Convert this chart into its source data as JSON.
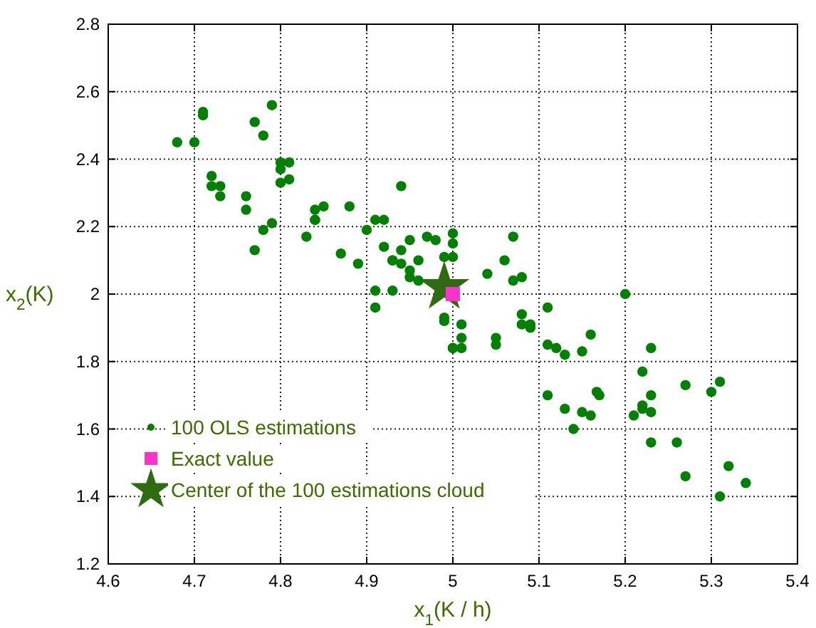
{
  "chart_data": {
    "type": "scatter",
    "xlabel": "x$_{1}$(K / h)",
    "ylabel": "x$_{2}$(K)",
    "xlim": [
      4.6,
      5.4
    ],
    "ylim": [
      1.2,
      2.8
    ],
    "xticks": [
      4.6,
      4.7,
      4.8,
      4.9,
      5,
      5.1,
      5.2,
      5.3,
      5.4
    ],
    "yticks": [
      1.2,
      1.4,
      1.6,
      1.8,
      2,
      2.2,
      2.4,
      2.6,
      2.8
    ],
    "grid": true,
    "legend": "bottom left",
    "series": [
      {
        "name": "100 OLS estimations",
        "color": "#008000",
        "marker": "circle",
        "x": [
          4.68,
          4.7,
          4.71,
          4.71,
          4.79,
          4.77,
          4.78,
          4.8,
          4.8,
          4.81,
          4.8,
          4.81,
          4.72,
          4.72,
          4.73,
          4.73,
          4.76,
          4.76,
          4.79,
          4.78,
          4.77,
          4.83,
          4.84,
          4.84,
          4.84,
          4.85,
          4.88,
          4.94,
          4.9,
          4.91,
          4.92,
          4.87,
          4.89,
          4.92,
          4.95,
          4.94,
          4.93,
          4.93,
          4.94,
          4.96,
          4.97,
          4.98,
          4.95,
          4.95,
          4.96,
          4.99,
          5.0,
          5.0,
          4.91,
          4.93,
          4.91,
          4.99,
          4.99,
          5.0,
          5.07,
          5.06,
          5.04,
          5.07,
          5.08,
          5.01,
          5.01,
          5.01,
          5.0,
          5.05,
          5.05,
          5.0,
          5.08,
          5.08,
          5.09,
          5.09,
          5.11,
          5.11,
          5.12,
          5.13,
          5.15,
          5.16,
          5.2,
          5.23,
          5.22,
          5.27,
          5.3,
          5.31,
          5.23,
          5.22,
          5.22,
          5.23,
          5.21,
          5.23,
          5.26,
          5.27,
          5.32,
          5.34,
          5.31,
          5.11,
          5.13,
          5.14,
          5.15,
          5.16,
          5.167,
          5.17
        ],
        "values": [
          2.45,
          2.45,
          2.54,
          2.53,
          2.56,
          2.51,
          2.47,
          2.39,
          2.37,
          2.39,
          2.33,
          2.34,
          2.35,
          2.32,
          2.32,
          2.29,
          2.29,
          2.25,
          2.21,
          2.19,
          2.13,
          2.17,
          2.22,
          2.22,
          2.25,
          2.26,
          2.26,
          2.32,
          2.19,
          2.22,
          2.22,
          2.12,
          2.09,
          2.14,
          2.16,
          2.13,
          2.1,
          2.1,
          2.09,
          2.1,
          2.17,
          2.16,
          2.07,
          2.05,
          2.04,
          2.11,
          2.18,
          2.15,
          2.01,
          2.01,
          1.96,
          1.93,
          1.92,
          1.84,
          2.17,
          2.1,
          2.06,
          2.04,
          2.05,
          1.91,
          1.87,
          1.84,
          1.84,
          1.87,
          1.85,
          2.11,
          1.94,
          1.91,
          1.91,
          1.9,
          1.96,
          1.85,
          1.84,
          1.82,
          1.83,
          1.88,
          2.0,
          1.84,
          1.77,
          1.73,
          1.71,
          1.74,
          1.7,
          1.67,
          1.66,
          1.65,
          1.64,
          1.56,
          1.56,
          1.46,
          1.49,
          1.44,
          1.4,
          1.7,
          1.66,
          1.6,
          1.65,
          1.64,
          1.71,
          1.7
        ]
      },
      {
        "name": "Exact value",
        "color": "#ff33cc",
        "marker": "square",
        "x": [
          5.0
        ],
        "values": [
          2.0
        ]
      },
      {
        "name": "Center of the 100 estimations cloud",
        "color": "#2f6b10",
        "marker": "star",
        "x": [
          4.99
        ],
        "values": [
          2.02
        ]
      }
    ]
  }
}
